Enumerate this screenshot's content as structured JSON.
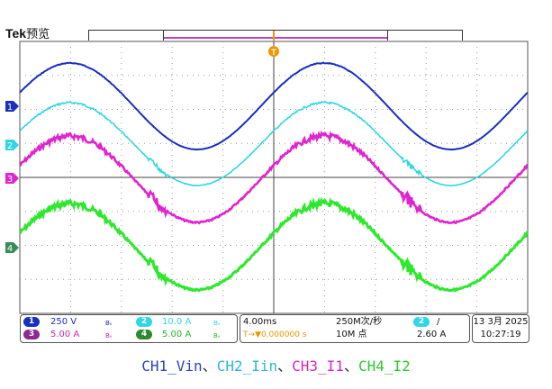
{
  "header": {
    "brand": "Tek",
    "mode": "预览",
    "trigger_marker": "T"
  },
  "channel_markers": [
    "1",
    "2",
    "3",
    "4"
  ],
  "colors": {
    "ch1": "#1a2fbf",
    "ch2": "#2fd6e6",
    "ch3": "#e024d0",
    "ch4": "#2ee82e",
    "grid": "#9a9a9a",
    "trigger": "#f29500",
    "ch4_marker": "#3a8a5a"
  },
  "settings": {
    "ch1": {
      "id": "1",
      "scale": "250 V",
      "bw": "Bᵥ"
    },
    "ch2": {
      "id": "2",
      "scale": "10.0 A",
      "bw": "Bᵥ"
    },
    "ch3": {
      "id": "3",
      "scale": "5.00 A",
      "bw": "Bᵥ"
    },
    "ch4": {
      "id": "4",
      "scale": "5.00 A",
      "bw": "Bᵥ"
    }
  },
  "timebase": {
    "horizontal_scale": "4.00ms",
    "trigger_position": "T→▼0.000000 s",
    "sample_rate": "250M次/秒",
    "record_length": "10M 点"
  },
  "trigger": {
    "source": "2",
    "slope": "/",
    "level": "2.60 A"
  },
  "clock": {
    "date": "13 3月 2025",
    "time": "10:27:19"
  },
  "caption": {
    "ch1": "CH1_Vin",
    "sep1": "、",
    "ch2": "CH2_Iin",
    "sep2": "、",
    "ch3": "CH3_I1",
    "sep3": "、",
    "ch4": "CH4_I2"
  }
}
